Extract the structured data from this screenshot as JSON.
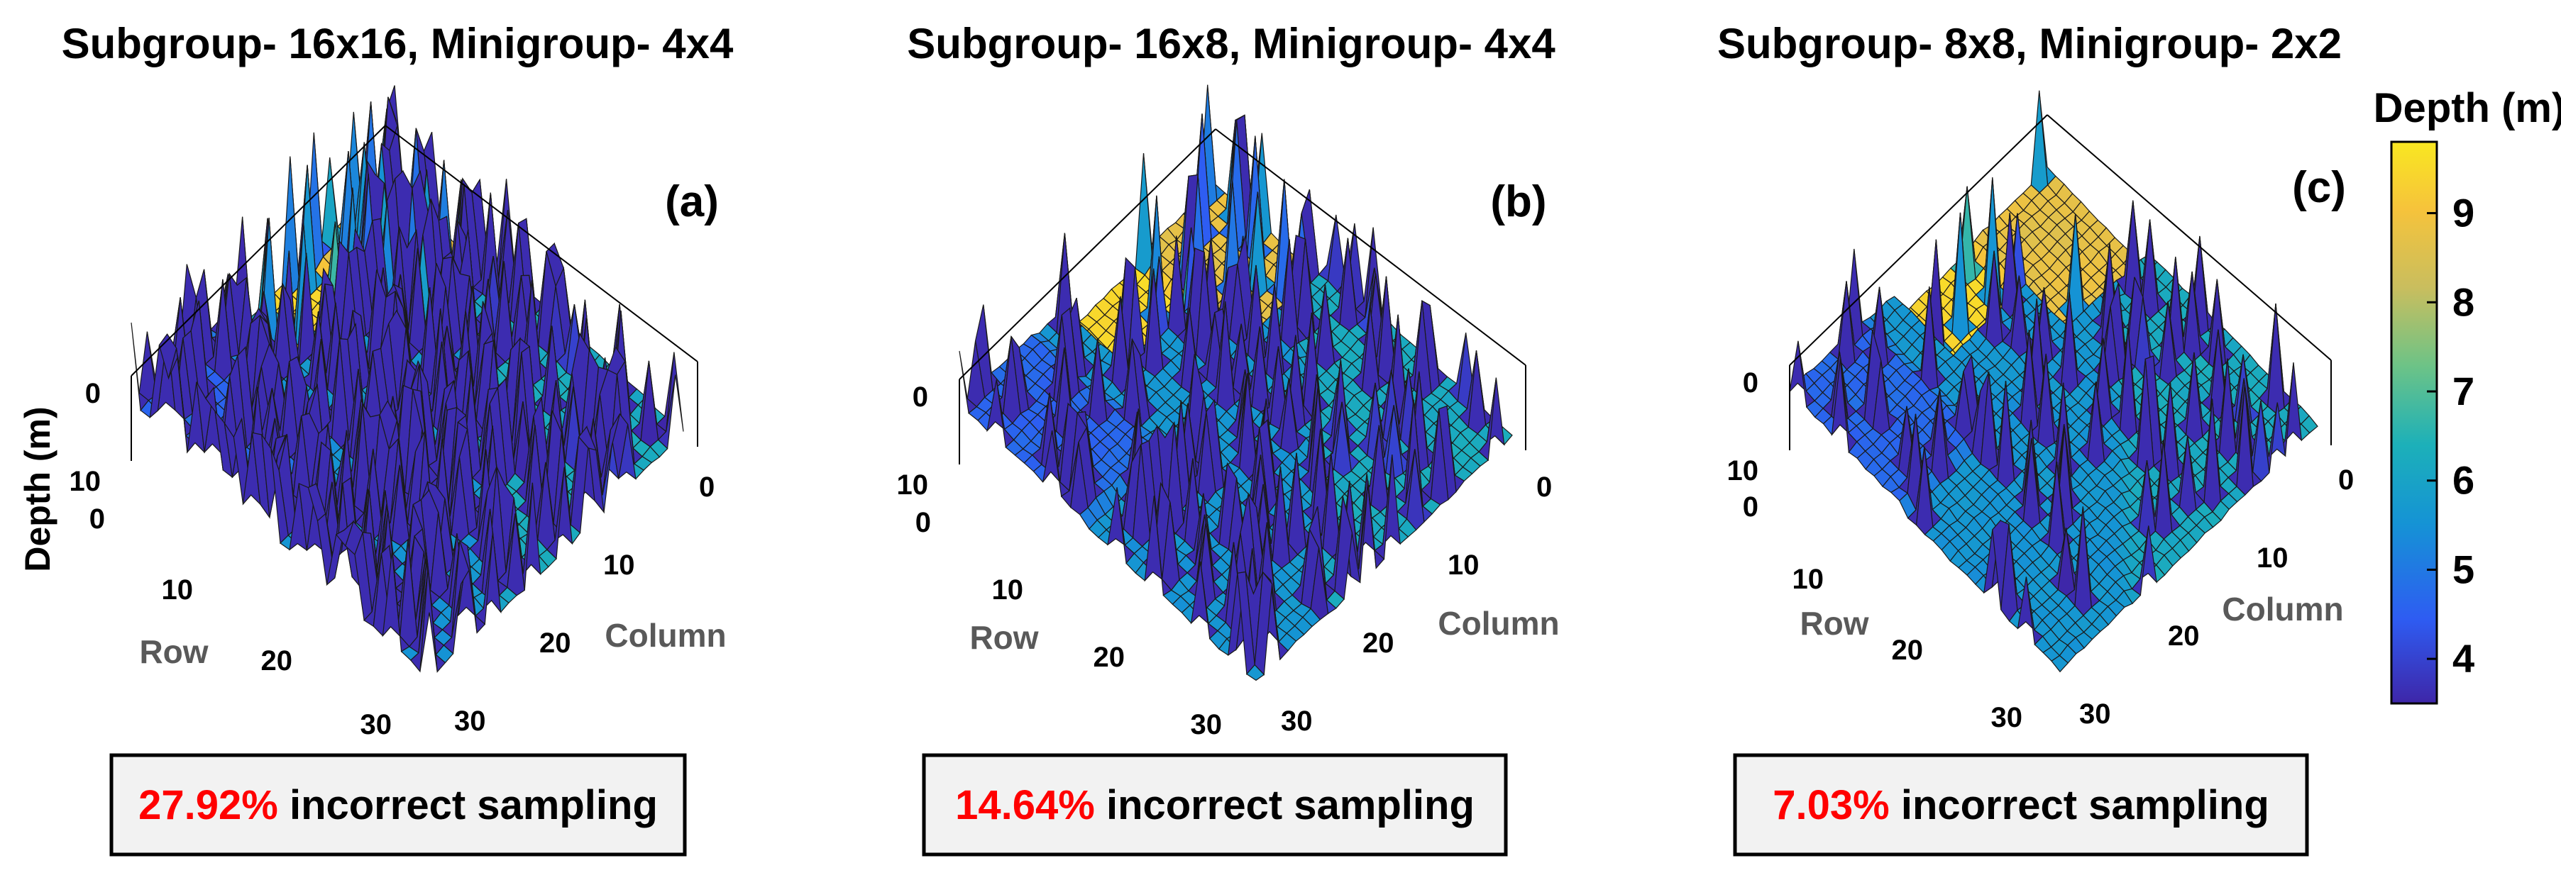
{
  "chart_data": [
    {
      "type": "surface",
      "panel_label": "(a)",
      "title": "Subgroup- 16x16, Minigroup- 4x4",
      "xlabel": "Row",
      "ylabel": "Column",
      "zlabel": "Depth (m)",
      "x_ticks": [
        "0",
        "10",
        "20",
        "30"
      ],
      "y_ticks": [
        "0",
        "10",
        "20",
        "30"
      ],
      "z_ticks": [
        "0",
        "10"
      ],
      "xlim": [
        0,
        32
      ],
      "ylim": [
        0,
        32
      ],
      "zlim": [
        0,
        10
      ],
      "incorrect_sampling_pct": "27.92%",
      "note_suffix": " incorrect sampling",
      "spike_density": 0.28
    },
    {
      "type": "surface",
      "panel_label": "(b)",
      "title": "Subgroup- 16x8, Minigroup- 4x4",
      "xlabel": "Row",
      "ylabel": "Column",
      "zlabel": "",
      "x_ticks": [
        "0",
        "10",
        "20",
        "30"
      ],
      "y_ticks": [
        "0",
        "10",
        "20",
        "30"
      ],
      "z_ticks": [
        "0",
        "10"
      ],
      "xlim": [
        0,
        32
      ],
      "ylim": [
        0,
        32
      ],
      "zlim": [
        0,
        10
      ],
      "incorrect_sampling_pct": "14.64%",
      "note_suffix": " incorrect sampling",
      "spike_density": 0.15
    },
    {
      "type": "surface",
      "panel_label": "(c)",
      "title": "Subgroup- 8x8, Minigroup- 2x2",
      "xlabel": "Row",
      "ylabel": "Column",
      "zlabel": "",
      "x_ticks": [
        "0",
        "10",
        "20",
        "30"
      ],
      "y_ticks": [
        "0",
        "10",
        "20",
        "30"
      ],
      "z_ticks": [
        "0",
        "10"
      ],
      "xlim": [
        0,
        32
      ],
      "ylim": [
        0,
        32
      ],
      "zlim": [
        0,
        10
      ],
      "incorrect_sampling_pct": "7.03%",
      "note_suffix": " incorrect sampling",
      "spike_density": 0.07
    }
  ],
  "colorbar": {
    "title": "Depth (m)",
    "ticks": [
      "4",
      "5",
      "6",
      "7",
      "8",
      "9"
    ],
    "range": [
      3.5,
      9.8
    ],
    "colors": [
      "#3e26a8",
      "#2e5cf2",
      "#1593d5",
      "#1cb0b9",
      "#6cc387",
      "#c9be5e",
      "#f6c33b",
      "#f9e721"
    ]
  }
}
